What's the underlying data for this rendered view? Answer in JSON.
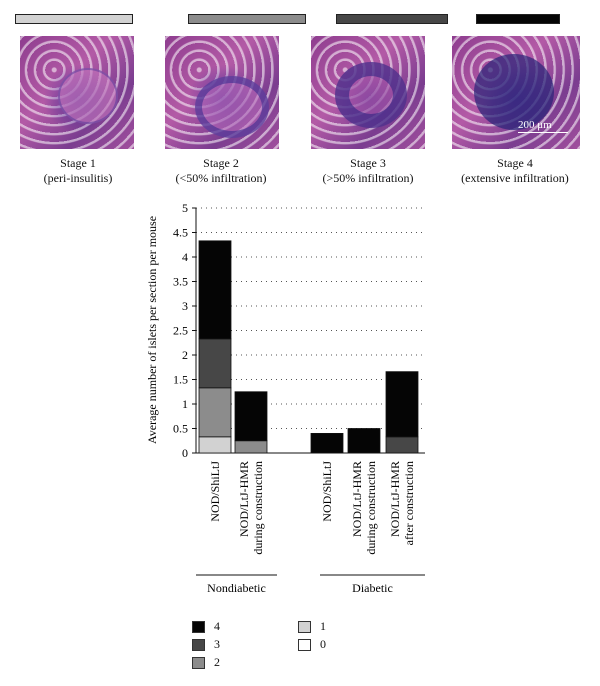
{
  "stages": [
    {
      "title": "Stage 1",
      "subtitle": "(peri-insulitis)",
      "color": "#d2d2d2"
    },
    {
      "title": "Stage 2",
      "subtitle": "(<50% infiltration)",
      "color": "#8c8c8c"
    },
    {
      "title": "Stage 3",
      "subtitle": "(>50% infiltration)",
      "color": "#474747"
    },
    {
      "title": "Stage 4",
      "subtitle": "(extensive infiltration)",
      "color": "#050505"
    }
  ],
  "scale_bar": "200 μm",
  "chart_data": {
    "type": "bar",
    "stacked": true,
    "ylabel": "Average number of islets per section per mouse",
    "ylim": [
      0,
      5
    ],
    "yticks": [
      "0",
      "0.5",
      "1",
      "1.5",
      "2",
      "2.5",
      "3",
      "3.5",
      "4",
      "4.5",
      "5"
    ],
    "grid": "dotted horizontal",
    "categories": [
      "NOD/ShiLtJ",
      "NOD/LtJ-HMR during construction",
      "NOD/ShiLtJ",
      "NOD/LtJ-HMR during construction",
      "NOD/LtJ-HMR after construction"
    ],
    "category_lines": [
      [
        "NOD/ShiLtJ"
      ],
      [
        "NOD/LtJ-HMR",
        "during construction"
      ],
      [
        "NOD/ShiLtJ"
      ],
      [
        "NOD/LtJ-HMR",
        "during construction"
      ],
      [
        "NOD/LtJ-HMR",
        "after construction"
      ]
    ],
    "groups": [
      {
        "label": "Nondiabetic",
        "members": [
          0,
          1
        ]
      },
      {
        "label": "Diabetic",
        "members": [
          2,
          3,
          4
        ]
      }
    ],
    "series": [
      {
        "name": "0",
        "color": "#ffffff",
        "values": [
          0,
          0,
          0,
          0,
          0
        ]
      },
      {
        "name": "1",
        "color": "#d2d2d2",
        "values": [
          0.33,
          0,
          0,
          0,
          0
        ]
      },
      {
        "name": "2",
        "color": "#8c8c8c",
        "values": [
          1.0,
          0.25,
          0,
          0,
          0
        ]
      },
      {
        "name": "3",
        "color": "#474747",
        "values": [
          1.0,
          0,
          0,
          0,
          0.33
        ]
      },
      {
        "name": "4",
        "color": "#050505",
        "values": [
          2.0,
          1.0,
          0.4,
          0.5,
          1.33
        ]
      }
    ]
  },
  "legend": [
    {
      "label": "4",
      "color": "#050505"
    },
    {
      "label": "3",
      "color": "#474747"
    },
    {
      "label": "2",
      "color": "#8c8c8c"
    },
    {
      "label": "1",
      "color": "#d2d2d2"
    },
    {
      "label": "0",
      "color": "#ffffff"
    }
  ]
}
